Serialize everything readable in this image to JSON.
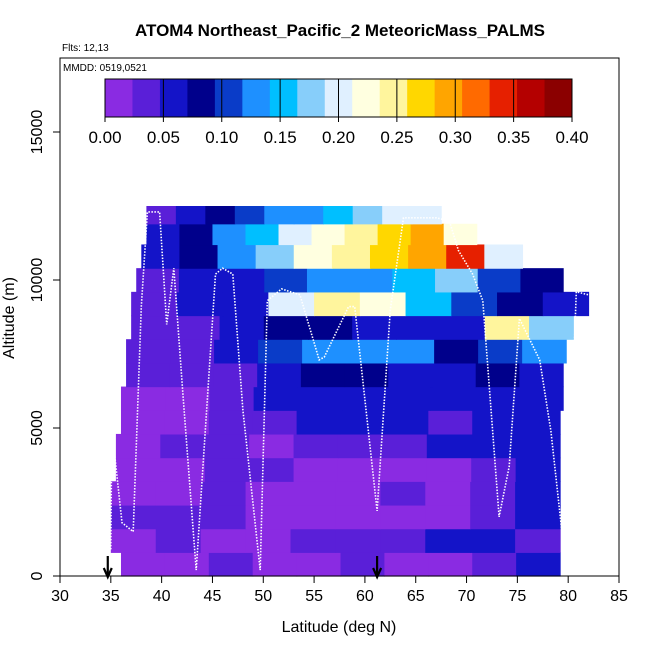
{
  "chart_data": {
    "type": "heatmap",
    "title": "ATOM4 Northeast_Pacific_2 MeteoricMass_PALMS",
    "subtitle_flights": "Flts: 12,13",
    "subtitle_dates": "MMDD: 0519,0521",
    "xlabel": "Latitude (deg N)",
    "ylabel": "Altitude (m)",
    "xlim": [
      30,
      85
    ],
    "ylim": [
      0,
      17500
    ],
    "x_ticks": [
      "30",
      "35",
      "40",
      "45",
      "50",
      "55",
      "60",
      "65",
      "70",
      "75",
      "80",
      "85"
    ],
    "y_ticks": [
      "0",
      "5000",
      "10000",
      "15000"
    ],
    "colorbar": {
      "range": [
        0,
        0.4
      ],
      "ticks": [
        "0.00",
        "0.05",
        "0.10",
        "0.15",
        "0.20",
        "0.25",
        "0.30",
        "0.35",
        "0.40"
      ],
      "colors": [
        "#8a2be2",
        "#5a1fd8",
        "#1414c8",
        "#00008b",
        "#0a3cc8",
        "#1e90ff",
        "#00bfff",
        "#87cefa",
        "#e0f0ff",
        "#ffffe0",
        "#fff59d",
        "#ffd700",
        "#ffa500",
        "#ff6a00",
        "#e62000",
        "#b40000",
        "#8b0000"
      ]
    },
    "altitude_bins": [
      {
        "y0": 0,
        "y1": 800,
        "x0": 36.0,
        "x1": 79.2,
        "cells": [
          0.02,
          0.02,
          0.03,
          0.02,
          0.02,
          0.03,
          0.02,
          0.02,
          0.03,
          0.05
        ]
      },
      {
        "y0": 800,
        "y1": 1600,
        "x0": 35.0,
        "x1": 79.2,
        "cells": [
          0.02,
          0.03,
          0.02,
          0.02,
          0.03,
          0.03,
          0.04,
          0.05,
          0.07,
          0.04
        ]
      },
      {
        "y0": 1600,
        "y1": 2400,
        "x0": 35.0,
        "x1": 79.2,
        "cells": [
          0.03,
          0.03,
          0.04,
          0.02,
          0.02,
          0.02,
          0.02,
          0.02,
          0.03,
          0.06
        ]
      },
      {
        "y0": 2400,
        "y1": 3200,
        "x0": 35.0,
        "x1": 79.2,
        "cells": [
          0.02,
          0.02,
          0.03,
          0.02,
          0.02,
          0.02,
          0.03,
          0.02,
          0.04,
          0.05
        ]
      },
      {
        "y0": 3200,
        "y1": 4000,
        "x0": 35.5,
        "x1": 79.2,
        "cells": [
          0.02,
          0.02,
          0.03,
          0.03,
          0.02,
          0.02,
          0.02,
          0.02,
          0.04,
          0.06
        ]
      },
      {
        "y0": 4000,
        "y1": 4800,
        "x0": 35.5,
        "x1": 79.2,
        "cells": [
          0.02,
          0.03,
          0.03,
          0.02,
          0.03,
          0.04,
          0.04,
          0.05,
          0.06,
          0.06
        ]
      },
      {
        "y0": 4800,
        "y1": 5600,
        "x0": 36.0,
        "x1": 79.2,
        "cells": [
          0.02,
          0.02,
          0.03,
          0.04,
          0.05,
          0.06,
          0.05,
          0.04,
          0.05,
          0.06
        ]
      },
      {
        "y0": 5600,
        "y1": 6400,
        "x0": 36.0,
        "x1": 79.5,
        "cells": [
          0.02,
          0.02,
          0.03,
          0.05,
          0.06,
          0.07,
          0.06,
          0.05,
          0.06,
          0.07
        ]
      },
      {
        "y0": 6400,
        "y1": 7200,
        "x0": 36.5,
        "x1": 79.5,
        "cells": [
          0.03,
          0.03,
          0.04,
          0.06,
          0.08,
          0.08,
          0.07,
          0.07,
          0.08,
          0.07
        ]
      },
      {
        "y0": 7200,
        "y1": 8000,
        "x0": 36.5,
        "x1": 79.8,
        "cells": [
          0.04,
          0.04,
          0.05,
          0.1,
          0.13,
          0.14,
          0.12,
          0.09,
          0.1,
          0.12
        ]
      },
      {
        "y0": 8000,
        "y1": 8800,
        "x0": 37.0,
        "x1": 80.5,
        "cells": [
          0.03,
          0.04,
          0.05,
          0.08,
          0.08,
          0.07,
          0.06,
          0.05,
          0.25,
          0.18
        ]
      },
      {
        "y0": 8800,
        "y1": 9600,
        "x0": 37.0,
        "x1": 82.0,
        "cells": [
          0.04,
          0.05,
          0.06,
          0.2,
          0.25,
          0.22,
          0.15,
          0.1,
          0.08,
          0.07
        ]
      },
      {
        "y0": 9600,
        "y1": 10400,
        "x0": 37.5,
        "x1": 79.5,
        "cells": [
          0.04,
          0.05,
          0.07,
          0.1,
          0.12,
          0.13,
          0.16,
          0.18,
          0.1,
          0.08
        ]
      },
      {
        "y0": 10400,
        "y1": 11200,
        "x0": 38.0,
        "x1": 75.5,
        "cells": [
          0.06,
          0.08,
          0.12,
          0.18,
          0.22,
          0.24,
          0.26,
          0.3,
          0.33,
          0.2
        ]
      },
      {
        "y0": 11200,
        "y1": 11900,
        "x0": 38.5,
        "x1": 71.0,
        "cells": [
          0.07,
          0.09,
          0.12,
          0.16,
          0.2,
          0.22,
          0.25,
          0.28,
          0.29,
          0.23
        ]
      },
      {
        "y0": 11900,
        "y1": 12500,
        "x0": 38.5,
        "x1": 67.5,
        "cells": [
          0.04,
          0.06,
          0.08,
          0.1,
          0.13,
          0.14,
          0.15,
          0.17,
          0.19,
          0.2
        ]
      }
    ],
    "flight_tracks": [
      {
        "name": "",
        "points": [
          [
            35.0,
            900
          ],
          [
            35.1,
            5000
          ],
          [
            36.1,
            1800
          ],
          [
            37.2,
            1500
          ],
          [
            38.0,
            9100
          ],
          [
            38.6,
            12300
          ],
          [
            39.8,
            12300
          ],
          [
            40.5,
            8500
          ],
          [
            41.2,
            10400
          ],
          [
            42.1,
            6100
          ],
          [
            43.4,
            200
          ],
          [
            45.3,
            10200
          ],
          [
            46.0,
            10400
          ],
          [
            47.0,
            10200
          ],
          [
            48.0,
            5600
          ],
          [
            49.7,
            200
          ],
          [
            50.4,
            9300
          ],
          [
            51.8,
            9700
          ],
          [
            53.6,
            9500
          ],
          [
            55.5,
            7300
          ],
          [
            56.0,
            7400
          ],
          [
            58.4,
            9100
          ],
          [
            59.0,
            9100
          ],
          [
            61.2,
            2200
          ],
          [
            62.5,
            9000
          ],
          [
            63.8,
            12100
          ],
          [
            67.0,
            12100
          ],
          [
            68.3,
            12000
          ],
          [
            69.2,
            11000
          ],
          [
            70.6,
            10200
          ],
          [
            71.6,
            9300
          ],
          [
            73.2,
            2000
          ],
          [
            74.2,
            3700
          ],
          [
            75.2,
            8700
          ],
          [
            77.2,
            7300
          ],
          [
            78.3,
            4900
          ],
          [
            79.8,
            200
          ],
          [
            80.8,
            9600
          ],
          [
            82.0,
            9500
          ]
        ]
      }
    ],
    "markers": [
      {
        "label": "",
        "x": 34.7
      },
      {
        "label": "",
        "x": 61.2
      }
    ]
  }
}
